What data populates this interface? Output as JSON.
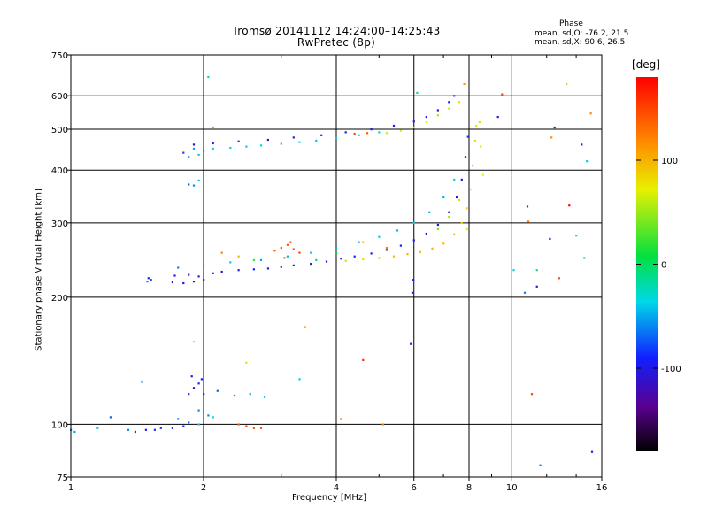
{
  "chart_data": {
    "type": "scatter",
    "title": "Tromsø 20141112 14:24:00–14:25:43",
    "subtitle": "RwPretec (8p)",
    "xlabel": "Frequency [MHz]",
    "ylabel": "Stationary phase Virtual Height [km]",
    "x_scale": "log",
    "y_scale": "log",
    "xlim": [
      1,
      16
    ],
    "ylim": [
      75,
      750
    ],
    "x_ticks": [
      1,
      2,
      4,
      6,
      8,
      10,
      16
    ],
    "x_tick_labels": [
      "1",
      "2",
      "4",
      "6",
      "8",
      "10",
      "16"
    ],
    "y_ticks": [
      75,
      100,
      200,
      300,
      400,
      500,
      600,
      750
    ],
    "y_tick_labels": [
      "75",
      "100",
      "200",
      "300",
      "400",
      "500",
      "600",
      "750"
    ],
    "grid": true,
    "phase_stats": {
      "heading": "Phase",
      "line_o": "mean, sd,O: -76.2, 21.5",
      "line_x": "mean, sd,X:  90.6, 26.5"
    },
    "colorbar": {
      "label": "[deg]",
      "range": [
        -180,
        180
      ],
      "ticks": [
        100,
        0,
        -100
      ],
      "tick_labels": [
        "100",
        "0",
        "-100"
      ]
    },
    "series": [
      {
        "points": [
          [
            1.0,
            97,
            -60
          ],
          [
            1.02,
            96,
            -50
          ],
          [
            1.15,
            98,
            -40
          ],
          [
            1.23,
            104,
            -70
          ],
          [
            1.35,
            97,
            -60
          ],
          [
            1.4,
            96,
            -80
          ],
          [
            1.48,
            97,
            -90
          ],
          [
            1.55,
            97,
            -85
          ],
          [
            1.6,
            98,
            -88
          ],
          [
            1.7,
            98,
            -90
          ],
          [
            1.8,
            99,
            -85
          ],
          [
            1.85,
            101,
            -70
          ],
          [
            1.95,
            100,
            -40
          ],
          [
            1.75,
            103,
            -60
          ],
          [
            2.05,
            105,
            -60
          ],
          [
            2.4,
            100,
            140
          ],
          [
            2.5,
            99,
            150
          ],
          [
            2.6,
            98,
            145
          ],
          [
            2.7,
            98,
            150
          ],
          [
            1.5,
            222,
            -90
          ],
          [
            1.52,
            220,
            -80
          ],
          [
            1.49,
            218,
            -60
          ],
          [
            1.7,
            217,
            -110
          ],
          [
            1.8,
            216,
            -115
          ],
          [
            1.9,
            218,
            -120
          ],
          [
            2.0,
            220,
            -110
          ],
          [
            1.72,
            225,
            -105
          ],
          [
            1.85,
            226,
            -100
          ],
          [
            1.95,
            224,
            -90
          ],
          [
            2.1,
            228,
            -100
          ],
          [
            2.2,
            230,
            -110
          ],
          [
            2.4,
            232,
            -100
          ],
          [
            2.6,
            233,
            -95
          ],
          [
            2.8,
            234,
            -100
          ],
          [
            3.0,
            236,
            -105
          ],
          [
            3.2,
            238,
            -100
          ],
          [
            3.5,
            240,
            -95
          ],
          [
            3.8,
            243,
            -100
          ],
          [
            4.1,
            247,
            -95
          ],
          [
            4.4,
            250,
            -90
          ],
          [
            4.8,
            254,
            -95
          ],
          [
            5.2,
            259,
            -100
          ],
          [
            5.6,
            265,
            -95
          ],
          [
            6.0,
            273,
            -100
          ],
          [
            6.4,
            283,
            -105
          ],
          [
            6.8,
            297,
            -110
          ],
          [
            7.2,
            318,
            -115
          ],
          [
            7.5,
            345,
            -110
          ],
          [
            7.7,
            380,
            -100
          ],
          [
            7.85,
            430,
            -90
          ],
          [
            7.95,
            480,
            -80
          ],
          [
            1.75,
            235,
            -60
          ],
          [
            2.0,
            238,
            -50
          ],
          [
            2.3,
            242,
            -40
          ],
          [
            2.7,
            245,
            -50
          ],
          [
            3.1,
            250,
            -45
          ],
          [
            3.5,
            255,
            -40
          ],
          [
            4.0,
            262,
            -45
          ],
          [
            4.5,
            270,
            -50
          ],
          [
            5.0,
            278,
            -40
          ],
          [
            5.5,
            288,
            -45
          ],
          [
            6.0,
            300,
            -40
          ],
          [
            6.5,
            318,
            -50
          ],
          [
            7.0,
            345,
            -45
          ],
          [
            7.4,
            380,
            -30
          ],
          [
            4.2,
            244,
            60
          ],
          [
            4.6,
            246,
            80
          ],
          [
            5.0,
            248,
            90
          ],
          [
            5.4,
            250,
            95
          ],
          [
            5.8,
            253,
            100
          ],
          [
            6.2,
            256,
            95
          ],
          [
            6.6,
            261,
            100
          ],
          [
            7.0,
            268,
            95
          ],
          [
            7.4,
            282,
            90
          ],
          [
            7.7,
            300,
            85
          ],
          [
            7.9,
            325,
            90
          ],
          [
            8.05,
            360,
            85
          ],
          [
            8.15,
            410,
            90
          ],
          [
            8.25,
            470,
            80
          ],
          [
            8.3,
            510,
            75
          ],
          [
            6.8,
            290,
            40
          ],
          [
            7.2,
            310,
            50
          ],
          [
            7.6,
            340,
            60
          ],
          [
            7.9,
            290,
            60
          ],
          [
            3.0,
            262,
            150
          ],
          [
            3.1,
            266,
            140
          ],
          [
            3.2,
            260,
            145
          ],
          [
            3.15,
            270,
            150
          ],
          [
            3.3,
            255,
            155
          ],
          [
            2.9,
            258,
            140
          ],
          [
            3.05,
            248,
            130
          ],
          [
            2.2,
            255,
            120
          ],
          [
            2.4,
            250,
            100
          ],
          [
            2.6,
            245,
            20
          ],
          [
            3.6,
            245,
            -10
          ],
          [
            4.0,
            255,
            10
          ],
          [
            4.6,
            270,
            100
          ],
          [
            5.2,
            262,
            120
          ],
          [
            1.8,
            440,
            -80
          ],
          [
            1.85,
            430,
            -60
          ],
          [
            1.9,
            450,
            -50
          ],
          [
            1.95,
            435,
            -40
          ],
          [
            2.0,
            445,
            -60
          ],
          [
            2.1,
            450,
            -40
          ],
          [
            2.3,
            452,
            -30
          ],
          [
            2.5,
            455,
            -40
          ],
          [
            2.7,
            458,
            -35
          ],
          [
            3.0,
            462,
            -40
          ],
          [
            3.3,
            466,
            -35
          ],
          [
            3.6,
            470,
            -40
          ],
          [
            4.0,
            476,
            -35
          ],
          [
            4.5,
            484,
            -40
          ],
          [
            5.0,
            492,
            -30
          ],
          [
            1.9,
            460,
            -110
          ],
          [
            2.1,
            463,
            -105
          ],
          [
            2.4,
            468,
            -110
          ],
          [
            2.8,
            472,
            -100
          ],
          [
            3.2,
            478,
            -105
          ],
          [
            3.7,
            484,
            -100
          ],
          [
            4.2,
            492,
            -105
          ],
          [
            4.8,
            500,
            -100
          ],
          [
            5.4,
            510,
            -95
          ],
          [
            6.0,
            522,
            -100
          ],
          [
            6.4,
            535,
            -105
          ],
          [
            6.8,
            555,
            -100
          ],
          [
            7.2,
            580,
            -90
          ],
          [
            7.4,
            600,
            -80
          ],
          [
            5.2,
            490,
            60
          ],
          [
            5.6,
            496,
            70
          ],
          [
            6.0,
            505,
            80
          ],
          [
            6.4,
            520,
            70
          ],
          [
            6.8,
            540,
            50
          ],
          [
            7.2,
            560,
            60
          ],
          [
            7.6,
            580,
            80
          ],
          [
            7.8,
            640,
            110
          ],
          [
            4.4,
            488,
            150
          ],
          [
            4.7,
            490,
            140
          ],
          [
            1.85,
            370,
            -80
          ],
          [
            1.9,
            368,
            -60
          ],
          [
            1.95,
            378,
            -50
          ],
          [
            1.85,
            118,
            -100
          ],
          [
            1.9,
            122,
            -110
          ],
          [
            1.95,
            125,
            -100
          ],
          [
            2.0,
            118,
            -90
          ],
          [
            1.88,
            130,
            -105
          ],
          [
            1.98,
            128,
            -95
          ],
          [
            2.15,
            120,
            -70
          ],
          [
            2.35,
            117,
            -60
          ],
          [
            2.55,
            118,
            -50
          ],
          [
            2.75,
            116,
            -40
          ],
          [
            1.95,
            108,
            -60
          ],
          [
            2.1,
            104,
            -30
          ],
          [
            1.45,
            126,
            -60
          ],
          [
            3.3,
            128,
            -40
          ],
          [
            1.9,
            157,
            80
          ],
          [
            2.5,
            140,
            80
          ],
          [
            3.4,
            170,
            120
          ],
          [
            4.6,
            142,
            160
          ],
          [
            5.1,
            100,
            120
          ],
          [
            4.1,
            103,
            140
          ],
          [
            5.9,
            155,
            -100
          ],
          [
            5.95,
            205,
            -110
          ],
          [
            5.98,
            220,
            -90
          ],
          [
            2.05,
            665,
            -20
          ],
          [
            2.1,
            505,
            120
          ],
          [
            6.1,
            610,
            -20
          ],
          [
            10.1,
            232,
            -40
          ],
          [
            10.7,
            205,
            -60
          ],
          [
            10.85,
            328,
            180
          ],
          [
            10.9,
            302,
            130
          ],
          [
            11.1,
            118,
            150
          ],
          [
            11.4,
            232,
            -20
          ],
          [
            11.4,
            212,
            -110
          ],
          [
            11.6,
            80,
            -60
          ],
          [
            12.2,
            275,
            -120
          ],
          [
            12.3,
            478,
            120
          ],
          [
            12.5,
            505,
            -100
          ],
          [
            12.8,
            222,
            150
          ],
          [
            13.3,
            640,
            50
          ],
          [
            13.5,
            330,
            180
          ],
          [
            14.0,
            280,
            -40
          ],
          [
            14.4,
            460,
            -90
          ],
          [
            14.8,
            420,
            -40
          ],
          [
            14.6,
            248,
            -40
          ],
          [
            15.1,
            545,
            120
          ],
          [
            15.2,
            86,
            -90
          ],
          [
            8.5,
            455,
            80
          ],
          [
            8.6,
            390,
            70
          ],
          [
            8.45,
            520,
            80
          ],
          [
            9.3,
            535,
            -100
          ],
          [
            9.5,
            605,
            150
          ]
        ]
      }
    ]
  }
}
